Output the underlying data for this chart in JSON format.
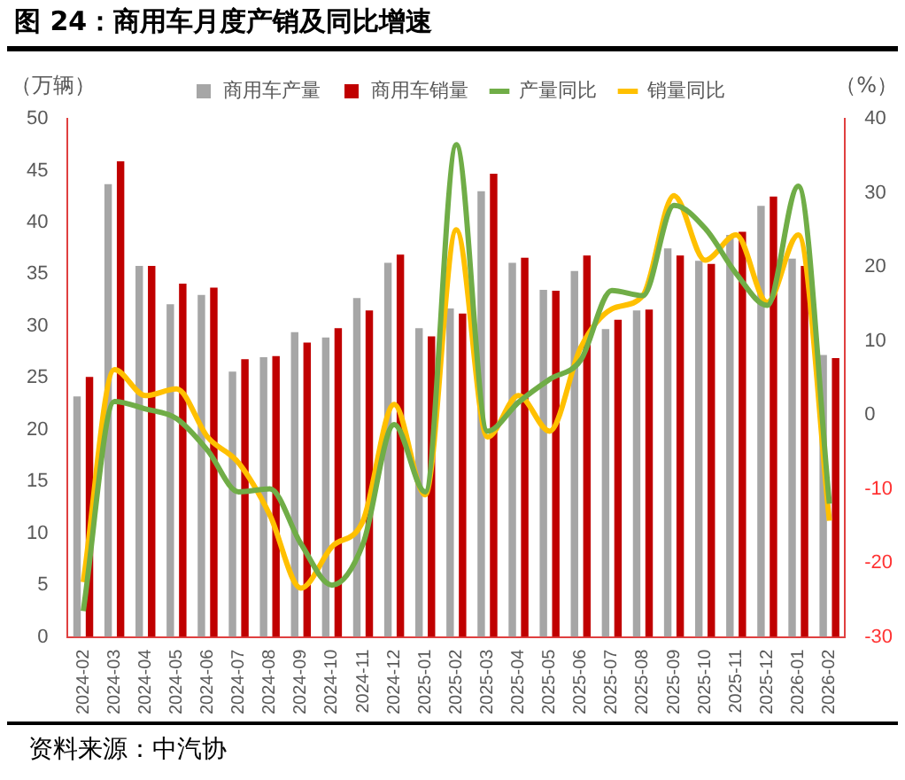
{
  "chart_data": {
    "type": "bar",
    "title": "图 24：商用车月度产销及同比增速",
    "ylabel": "（万辆）",
    "y2label": "（%）",
    "categories": [
      "2024-02",
      "2024-03",
      "2024-04",
      "2024-05",
      "2024-06",
      "2024-07",
      "2024-08",
      "2024-09",
      "2024-10",
      "2024-11",
      "2024-12",
      "2025-01",
      "2025-02",
      "2025-03",
      "2025-04",
      "2025-05",
      "2025-06",
      "2025-07",
      "2025-08",
      "2025-09",
      "2025-10",
      "2025-11",
      "2025-12",
      "2026-01",
      "2026-02"
    ],
    "series": [
      {
        "name": "商用车产量",
        "color": "#a6a6a6",
        "values": [
          23.2,
          43.7,
          35.8,
          32.1,
          33.0,
          25.6,
          27.0,
          29.4,
          28.9,
          32.7,
          36.1,
          29.8,
          31.7,
          43.0,
          36.1,
          33.5,
          35.3,
          29.7,
          31.5,
          37.5,
          36.3,
          38.8,
          41.6,
          36.5,
          27.2
        ]
      },
      {
        "name": "商用车销量",
        "color": "#c00000",
        "values": [
          25.1,
          45.9,
          35.8,
          34.1,
          33.7,
          26.8,
          27.1,
          28.4,
          29.8,
          31.5,
          36.9,
          29.0,
          31.2,
          44.7,
          36.6,
          33.4,
          36.8,
          30.6,
          31.6,
          36.8,
          36.0,
          39.1,
          42.5,
          35.8,
          26.9
        ]
      },
      {
        "name": "产量同比",
        "type": "line",
        "axis": "y2",
        "color": "#70ad47",
        "values": [
          -26.5,
          1.8,
          0.8,
          -0.5,
          -4.8,
          -10.4,
          -10.0,
          -17.4,
          -23.0,
          -17.4,
          -1.3,
          -10.4,
          36.5,
          -2.2,
          1.7,
          4.8,
          7.4,
          16.8,
          16.1,
          28.3,
          25.2,
          19.1,
          14.8,
          30.9,
          -12.0
        ]
      },
      {
        "name": "销量同比",
        "type": "line",
        "axis": "y2",
        "color": "#ffc000",
        "values": [
          -22.6,
          6.1,
          2.6,
          3.5,
          -3.0,
          -6.5,
          -13.5,
          -23.4,
          -17.8,
          -14.3,
          1.4,
          -10.8,
          25.0,
          -3.0,
          2.6,
          -2.2,
          9.1,
          14.3,
          16.1,
          29.6,
          20.9,
          24.3,
          15.2,
          24.3,
          -14.3
        ]
      }
    ],
    "ylim": [
      0,
      50
    ],
    "yticks": [
      0,
      5,
      10,
      15,
      20,
      25,
      30,
      35,
      40,
      45,
      50
    ],
    "y2lim": [
      -30,
      40
    ],
    "y2ticks": [
      -30,
      -20,
      -10,
      0,
      10,
      20,
      30,
      40
    ],
    "grid": false,
    "legend": "top",
    "marker": "none",
    "line_style": "solid",
    "annotations": [
      "资料来源：中汽协"
    ]
  }
}
